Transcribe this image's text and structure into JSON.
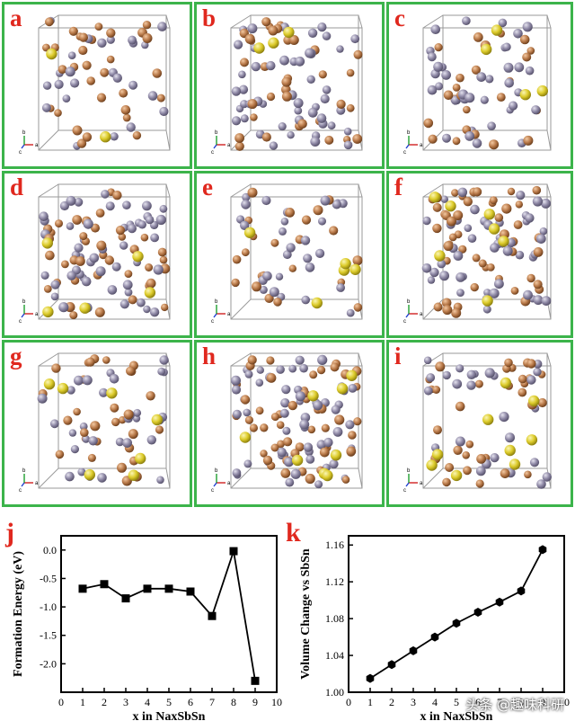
{
  "panels": [
    {
      "letter": "a",
      "atoms": 55,
      "na": 2,
      "seed": 11
    },
    {
      "letter": "b",
      "atoms": 82,
      "na": 3,
      "seed": 23
    },
    {
      "letter": "c",
      "atoms": 62,
      "na": 4,
      "seed": 37
    },
    {
      "letter": "d",
      "atoms": 92,
      "na": 5,
      "seed": 41
    },
    {
      "letter": "e",
      "atoms": 50,
      "na": 5,
      "seed": 53
    },
    {
      "letter": "f",
      "atoms": 95,
      "na": 7,
      "seed": 67
    },
    {
      "letter": "g",
      "atoms": 60,
      "na": 7,
      "seed": 71
    },
    {
      "letter": "h",
      "atoms": 110,
      "na": 8,
      "seed": 83
    },
    {
      "letter": "i",
      "atoms": 58,
      "na": 9,
      "seed": 97
    }
  ],
  "axes_labels": {
    "a": "a",
    "b": "b",
    "c": "c"
  },
  "colors": {
    "sb": "#8f89a6",
    "sn": "#b97a4a",
    "na": "#dccb2a",
    "frame": "#3cb44b",
    "letter": "#e0281e"
  },
  "chart_data": [
    {
      "letter": "j",
      "type": "line",
      "ylabel": "Formation Energy (eV)",
      "xlabel": "x in NaxSbSn",
      "xlim": [
        0,
        10
      ],
      "ylim": [
        -2.5,
        0.25
      ],
      "xticks": [
        "0",
        "1",
        "2",
        "3",
        "4",
        "5",
        "6",
        "7",
        "8",
        "9",
        "10"
      ],
      "yticks": [
        "0.0",
        "-0.5",
        "-1.0",
        "-1.5",
        "-2.0"
      ],
      "marker": "square",
      "x": [
        1,
        2,
        3,
        4,
        5,
        6,
        7,
        8,
        9
      ],
      "y": [
        -0.68,
        -0.6,
        -0.85,
        -0.68,
        -0.68,
        -0.73,
        -1.16,
        -0.02,
        -2.3
      ]
    },
    {
      "letter": "k",
      "type": "line",
      "ylabel": "Volume Change vs SbSn",
      "xlabel": "x in NaxSbSn",
      "xlim": [
        0,
        10
      ],
      "ylim": [
        1.0,
        1.17
      ],
      "xticks": [
        "0",
        "1",
        "2",
        "3",
        "4",
        "5",
        "6",
        "7",
        "8",
        "9",
        "10"
      ],
      "yticks": [
        "1.00",
        "1.04",
        "1.08",
        "1.12",
        "1.16"
      ],
      "marker": "hexagon",
      "x": [
        1,
        2,
        3,
        4,
        5,
        6,
        7,
        8,
        9
      ],
      "y": [
        1.015,
        1.03,
        1.045,
        1.06,
        1.075,
        1.087,
        1.098,
        1.11,
        1.155
      ]
    }
  ],
  "watermark": "头条 @趣味科研"
}
